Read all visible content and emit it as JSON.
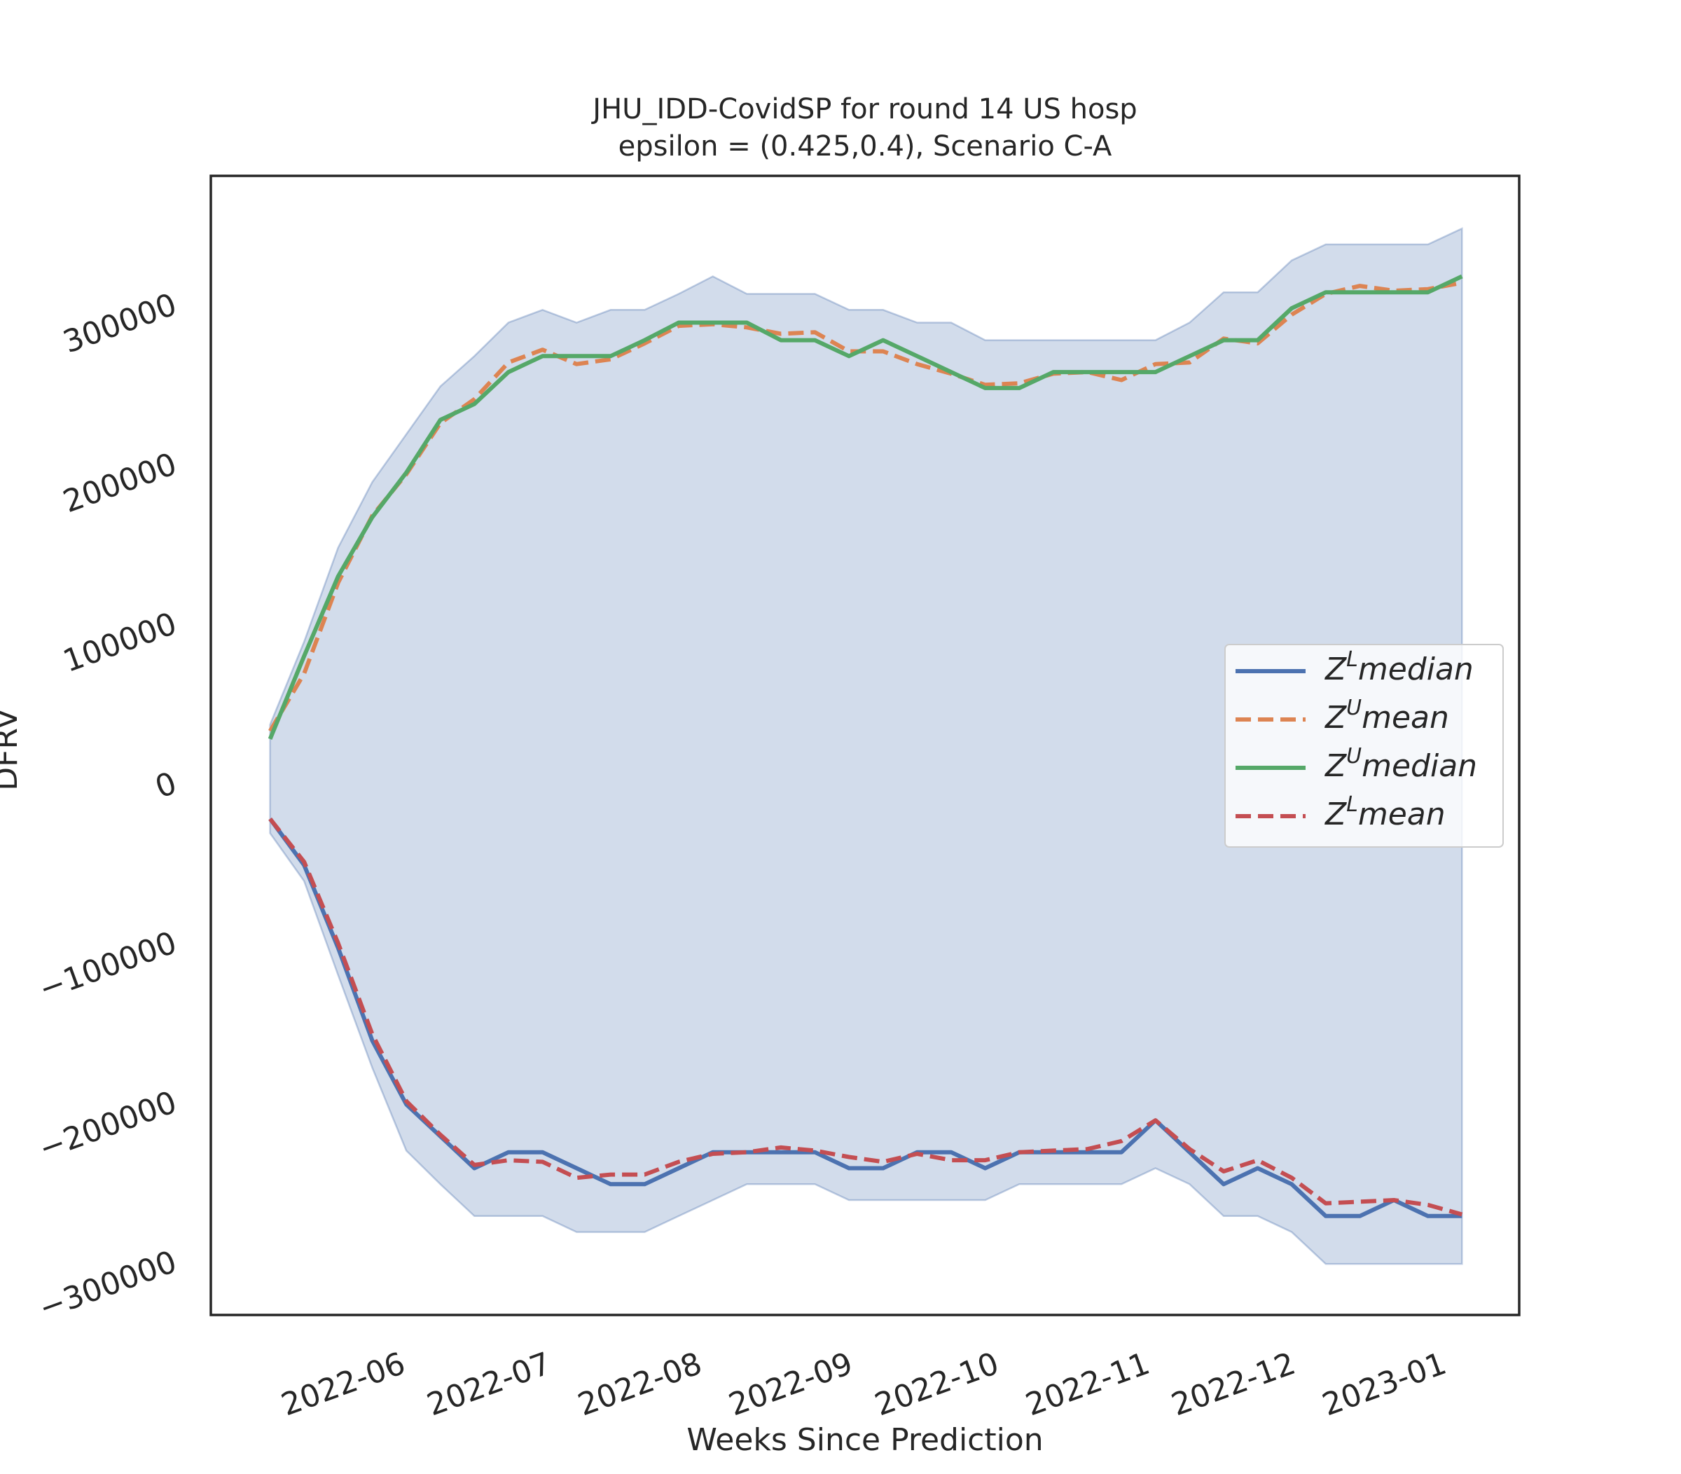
{
  "chart_data": {
    "type": "line",
    "title": "JHU_IDD-CovidSP for round 14 US  hosp",
    "subtitle": "epsilon = (0.425,0.4), Scenario C-A",
    "x_label": "Weeks Since Prediction",
    "y_label": "DFRV",
    "x": [
      0,
      1,
      2,
      3,
      4,
      5,
      6,
      7,
      8,
      9,
      10,
      11,
      12,
      13,
      14,
      15,
      16,
      17,
      18,
      19,
      20,
      21,
      22,
      23,
      24,
      25,
      26,
      27,
      28,
      29,
      30,
      31,
      32,
      33,
      34,
      35
    ],
    "xlim": [
      -1.74,
      36.68
    ],
    "xticks": [
      {
        "value": 3.43,
        "label": "2022-06"
      },
      {
        "value": 7.71,
        "label": "2022-07"
      },
      {
        "value": 12.14,
        "label": "2022-08"
      },
      {
        "value": 16.57,
        "label": "2022-09"
      },
      {
        "value": 20.86,
        "label": "2022-10"
      },
      {
        "value": 25.29,
        "label": "2022-11"
      },
      {
        "value": 29.57,
        "label": "2022-12"
      },
      {
        "value": 34,
        "label": "2023-01"
      }
    ],
    "ylim": [
      -333000,
      381000
    ],
    "yticks": [
      {
        "value": -300000,
        "label": "−300000"
      },
      {
        "value": -200000,
        "label": "−200000"
      },
      {
        "value": -100000,
        "label": "−100000"
      },
      0,
      100000,
      200000,
      300000
    ],
    "grid": false,
    "legend_position": "right",
    "band": {
      "color": "#4c72b0",
      "upper": [
        37000,
        89000,
        148000,
        189000,
        219000,
        249000,
        268000,
        289000,
        297000,
        289000,
        297000,
        297000,
        307000,
        318000,
        307000,
        307000,
        307000,
        297000,
        297000,
        289000,
        289000,
        278000,
        278000,
        278000,
        278000,
        278000,
        278000,
        289000,
        308000,
        308000,
        328000,
        338000,
        338000,
        338000,
        338000,
        348000
      ],
      "lower": [
        -31000,
        -61000,
        -120000,
        -178000,
        -230000,
        -251000,
        -271000,
        -271000,
        -271000,
        -281000,
        -281000,
        -281000,
        -271000,
        -261000,
        -251000,
        -251000,
        -251000,
        -261000,
        -261000,
        -261000,
        -261000,
        -261000,
        -251000,
        -251000,
        -251000,
        -251000,
        -241000,
        -251000,
        -271000,
        -271000,
        -281000,
        -301000,
        -301000,
        -301000,
        -301000,
        -301000
      ]
    },
    "series": [
      {
        "name": "Z^Lmedian",
        "color": "#4c72b0",
        "dashed": false,
        "values": [
          -22000,
          -51000,
          -103000,
          -161000,
          -201000,
          -221000,
          -241000,
          -231000,
          -231000,
          -241000,
          -251000,
          -251000,
          -241000,
          -231000,
          -231000,
          -231000,
          -231000,
          -241000,
          -241000,
          -231000,
          -231000,
          -241000,
          -231000,
          -231000,
          -231000,
          -231000,
          -211000,
          -231000,
          -251000,
          -241000,
          -251000,
          -271000,
          -271000,
          -261000,
          -271000,
          -271000
        ]
      },
      {
        "name": "Z^Umean",
        "color": "#dd8452",
        "dashed": true,
        "values": [
          33000,
          69000,
          126000,
          168000,
          194000,
          226000,
          241000,
          264000,
          272000,
          263000,
          266000,
          276000,
          287000,
          288000,
          286000,
          282000,
          283000,
          271000,
          271000,
          263000,
          257000,
          250000,
          251000,
          257000,
          258000,
          253000,
          263000,
          264000,
          279000,
          276000,
          294000,
          307000,
          312000,
          309000,
          310000,
          314000
        ]
      },
      {
        "name": "Z^Umedian",
        "color": "#55a868",
        "dashed": false,
        "values": [
          28000,
          80000,
          130000,
          167000,
          195000,
          228000,
          238000,
          258000,
          268000,
          268000,
          268000,
          278000,
          289000,
          289000,
          289000,
          278000,
          278000,
          268000,
          278000,
          268000,
          258000,
          248000,
          248000,
          258000,
          258000,
          258000,
          258000,
          268000,
          278000,
          278000,
          298000,
          308000,
          308000,
          308000,
          308000,
          318000
        ]
      },
      {
        "name": "Z^Lmean",
        "color": "#c44e52",
        "dashed": true,
        "values": [
          -22000,
          -49000,
          -100000,
          -157000,
          -199000,
          -220000,
          -239000,
          -236000,
          -237000,
          -247000,
          -245000,
          -245000,
          -237000,
          -232000,
          -231000,
          -228000,
          -230000,
          -234000,
          -237000,
          -232000,
          -236000,
          -236000,
          -231000,
          -230000,
          -229000,
          -224000,
          -211000,
          -229000,
          -243000,
          -236000,
          -247000,
          -263000,
          -262000,
          -261000,
          -264000,
          -270000
        ]
      }
    ]
  }
}
